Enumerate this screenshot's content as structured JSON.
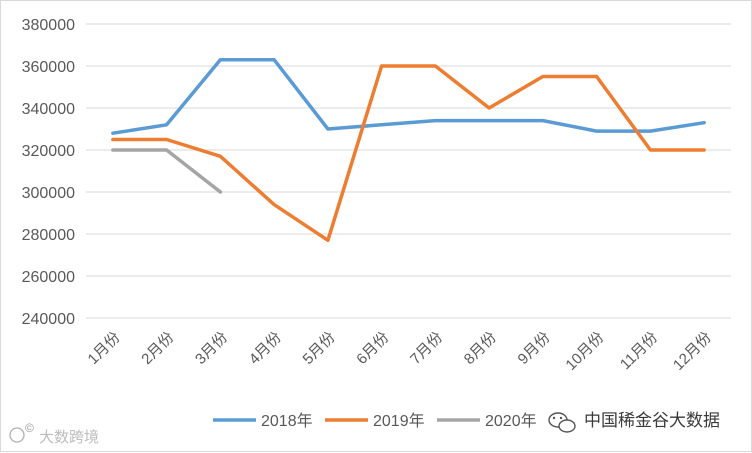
{
  "chart_data": {
    "type": "line",
    "categories": [
      "1月份",
      "2月份",
      "3月份",
      "4月份",
      "5月份",
      "6月份",
      "7月份",
      "8月份",
      "9月份",
      "10月份",
      "11月份",
      "12月份"
    ],
    "series": [
      {
        "name": "2018年",
        "color": "#5b9bd5",
        "values": [
          328000,
          332000,
          363000,
          363000,
          330000,
          332000,
          334000,
          334000,
          334000,
          329000,
          329000,
          333000
        ]
      },
      {
        "name": "2019年",
        "color": "#ed7d31",
        "values": [
          325000,
          325000,
          317000,
          294000,
          277000,
          360000,
          360000,
          340000,
          355000,
          355000,
          320000,
          320000
        ]
      },
      {
        "name": "2020年",
        "color": "#a5a5a5",
        "values": [
          320000,
          320000,
          300000,
          null,
          null,
          null,
          null,
          null,
          null,
          null,
          null,
          null
        ]
      }
    ],
    "yticks": [
      "240000",
      "260000",
      "280000",
      "300000",
      "320000",
      "340000",
      "360000",
      "380000"
    ],
    "ylim": [
      240000,
      380000
    ],
    "grid": true,
    "legend_position": "bottom"
  },
  "watermarks": {
    "brand_left": "大数跨境",
    "brand_right": "中国稀金谷大数据"
  }
}
